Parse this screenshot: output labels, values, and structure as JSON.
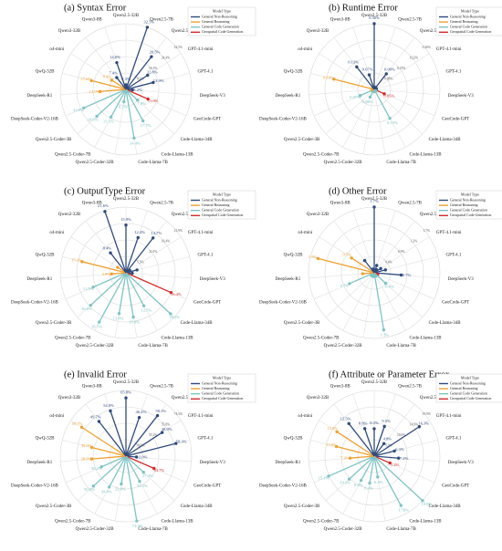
{
  "figure": {
    "legend_title": "Model Type",
    "legend_items": [
      {
        "label": "General Non-Reasoning",
        "color": "#2f4b7c"
      },
      {
        "label": "General Reasoning",
        "color": "#f0a030"
      },
      {
        "label": "General Code Generation",
        "color": "#7fc4c4"
      },
      {
        "label": "Geospatial Code Generation",
        "color": "#d62828"
      }
    ]
  },
  "chart_data": [
    {
      "type": "radar",
      "title": "(a) Syntax Error",
      "categories": [
        "Qwen2.5-32B",
        "Qwen2.5-7B",
        "Qwen2.5-3B",
        "GPT-4.1-mini",
        "GPT-4.1",
        "DeepSeek-V3",
        "GeoCode-GPT",
        "Code-Llama-34B",
        "Code-Llama-13B",
        "Code-Llama-7B",
        "Qwen2.5-Coder-32B",
        "Qwen2.5-Coder-7B",
        "Qwen2.5-Coder-3B",
        "DeepSeek-Coder-V2-16B",
        "DeepSeek-R1",
        "QwQ-32B",
        "o4-mini",
        "Qwen3-32B",
        "Qwen3-8B"
      ],
      "groups": [
        0,
        0,
        0,
        0,
        0,
        0,
        3,
        2,
        2,
        2,
        2,
        2,
        2,
        2,
        1,
        1,
        1,
        0,
        0
      ],
      "values": [
        2.3,
        32.5,
        20.5,
        12.8,
        13.9,
        3.2,
        11.9,
        7.8,
        17.7,
        24.4,
        6.2,
        15.5,
        19.6,
        22.8,
        12.9,
        17.6,
        8.4,
        7.4,
        14.0
      ],
      "labels": [
        "2.3%",
        "32.5%",
        "20.5%",
        "12.8%",
        "13.9%",
        "3.2%",
        "11.9%",
        "7.8%",
        "17.7%",
        "24.4%",
        "6.2%",
        "15.5%",
        "19.6%",
        "22.8%",
        "12.9%",
        "17.6%",
        "8.4%",
        "7.4%",
        "14.0%"
      ],
      "rings": [
        "8.1%",
        "16.3%",
        "24.4%",
        "32.5%"
      ],
      "rmax": 32.5
    },
    {
      "type": "radar",
      "title": "(b) Runtime Error",
      "categories": [
        "Qwen2.5-32B",
        "Qwen2.5-7B",
        "Qwen2.5-3B",
        "GPT-4.1-mini",
        "GPT-4.1",
        "DeepSeek-V3",
        "GeoCode-GPT",
        "Code-Llama-34B",
        "Code-Llama-13B",
        "Code-Llama-7B",
        "Qwen2.5-Coder-32B",
        "Qwen2.5-Coder-7B",
        "Qwen2.5-Coder-3B",
        "DeepSeek-Coder-V2-16B",
        "DeepSeek-R1",
        "QwQ-32B",
        "o4-mini",
        "Qwen3-32B",
        "Qwen3-8B"
      ],
      "groups": [
        0,
        0,
        0,
        0,
        0,
        0,
        3,
        2,
        2,
        2,
        2,
        2,
        2,
        2,
        1,
        1,
        1,
        0,
        0
      ],
      "values": [
        0.3,
        0.01,
        0.09,
        0.01,
        0.01,
        0.01,
        0.05,
        0.01,
        0.15,
        0.01,
        0.01,
        0.04,
        0.01,
        0.07,
        0.01,
        0.19,
        0.01,
        0.13,
        0.07
      ],
      "labels": [
        "0.30%",
        "",
        "0.09%",
        "",
        "",
        "",
        "0.05%",
        "",
        "0.15%",
        "",
        "",
        "0.04%",
        "",
        "0.07%",
        "",
        "0.19%",
        "",
        "0.13%",
        "0.07%"
      ],
      "rings": [
        "0.08%",
        "0.15%",
        "0.23%",
        "0.30%"
      ],
      "rmax": 0.3
    },
    {
      "type": "radar",
      "title": "(c) OutputType Error",
      "categories": [
        "Qwen2.5-32B",
        "Qwen2.5-7B",
        "Qwen2.5-3B",
        "GPT-4.1-mini",
        "GPT-4.1",
        "DeepSeek-V3",
        "GeoCode-GPT",
        "Code-Llama-34B",
        "Code-Llama-13B",
        "Code-Llama-7B",
        "Qwen2.5-Coder-32B",
        "Qwen2.5-Coder-7B",
        "Qwen2.5-Coder-3B",
        "DeepSeek-Coder-V2-16B",
        "DeepSeek-R1",
        "QwQ-32B",
        "o4-mini",
        "Qwen3-32B",
        "Qwen3-8B"
      ],
      "groups": [
        0,
        0,
        0,
        0,
        0,
        0,
        3,
        2,
        2,
        2,
        2,
        2,
        2,
        2,
        1,
        1,
        1,
        0,
        0
      ],
      "values": [
        15.9,
        12.4,
        14.7,
        1.5,
        3.8,
        2.1,
        16.4,
        20.2,
        12.5,
        15.0,
        13.8,
        18.7,
        16.0,
        11.9,
        4.8,
        15.1,
        3.3,
        8.4,
        21.6
      ],
      "labels": [
        "15.9%",
        "12.4%",
        "14.7%",
        "",
        "",
        "",
        "16.4%",
        "20.2%",
        "12.5%",
        "15.0%",
        "13.8%",
        "18.7%",
        "16.0%",
        "11.9%",
        "4.8%",
        "15.1%",
        "",
        "8.4%",
        "21.6%"
      ],
      "extra_labels": [
        "21.9%"
      ],
      "rings": [
        "5.5%",
        "11.0%",
        "16.4%",
        "21.9%"
      ],
      "rmax": 21.9
    },
    {
      "type": "radar",
      "title": "(d) Other Error",
      "categories": [
        "Qwen2.5-32B",
        "Qwen2.5-7B",
        "Qwen2.5-3B",
        "GPT-4.1-mini",
        "GPT-4.1",
        "DeepSeek-V3",
        "GeoCode-GPT",
        "Code-Llama-34B",
        "Code-Llama-13B",
        "Code-Llama-7B",
        "Qwen2.5-Coder-32B",
        "Qwen2.5-Coder-7B",
        "Qwen2.5-Coder-3B",
        "DeepSeek-Coder-V2-16B",
        "DeepSeek-R1",
        "QwQ-32B",
        "o4-mini",
        "Qwen3-32B",
        "Qwen3-8B"
      ],
      "groups": [
        0,
        0,
        0,
        0,
        0,
        0,
        3,
        2,
        2,
        2,
        2,
        2,
        2,
        2,
        1,
        1,
        1,
        0,
        0
      ],
      "values": [
        1.7,
        0.2,
        0.1,
        0.2,
        0.3,
        0.7,
        0.1,
        0.4,
        0.1,
        1.5,
        0.1,
        0.1,
        0.1,
        0.7,
        0.3,
        1.5,
        0.7,
        0.4,
        0.1
      ],
      "labels": [
        "1.7%",
        "",
        "",
        "",
        "",
        "0.7%",
        "",
        "0.4%",
        "",
        "1.5%",
        "",
        "",
        "",
        "0.7%",
        "",
        "1.5%",
        "0.7%",
        "",
        ""
      ],
      "rings": [
        "0.4%",
        "0.9%",
        "1.3%",
        "1.7%"
      ],
      "rmax": 1.7
    },
    {
      "type": "radar",
      "title": "(e) Invalid Error",
      "categories": [
        "Qwen2.5-32B",
        "Qwen2.5-7B",
        "Qwen2.5-3B",
        "GPT-4.1-mini",
        "GPT-4.1",
        "DeepSeek-V3",
        "GeoCode-GPT",
        "Code-Llama-34B",
        "Code-Llama-13B",
        "Code-Llama-7B",
        "Qwen2.5-Coder-32B",
        "Qwen2.5-Coder-7B",
        "Qwen2.5-Coder-3B",
        "DeepSeek-Coder-V2-16B",
        "DeepSeek-R1",
        "QwQ-32B",
        "o4-mini",
        "Qwen3-32B",
        "Qwen3-8B"
      ],
      "groups": [
        0,
        0,
        0,
        0,
        0,
        0,
        3,
        2,
        2,
        2,
        2,
        2,
        2,
        2,
        1,
        1,
        1,
        0,
        0
      ],
      "values": [
        65.8,
        46.2,
        58.1,
        48.9,
        58.3,
        12.0,
        34.7,
        27.0,
        32.5,
        74.3,
        32.0,
        39.8,
        50.0,
        30.2,
        38.9,
        39.9,
        59.7,
        49.7,
        54.0
      ],
      "labels": [
        "65.8%",
        "46.2%",
        "58.1%",
        "48.9%",
        "58.3%",
        "12.0%",
        "34.7%",
        "27.0%",
        "32.5%",
        "74.3%",
        "32.0%",
        "39.8%",
        "50.0%",
        "30.2%",
        "38.9%",
        "39.9%",
        "59.7%",
        "49.7%",
        "54.0%"
      ],
      "rings": [
        "18.6%",
        "37.2%",
        "55.8%",
        "74.3%"
      ],
      "rmax": 74.3
    },
    {
      "type": "radar",
      "title": "(f) Attribute or Parameter Error",
      "categories": [
        "Qwen2.5-32B",
        "Qwen2.5-7B",
        "Qwen2.5-3B",
        "GPT-4.1-mini",
        "GPT-4.1",
        "DeepSeek-V3",
        "GeoCode-GPT",
        "Code-Llama-34B",
        "Code-Llama-13B",
        "Code-Llama-7B",
        "Qwen2.5-Coder-32B",
        "Qwen2.5-Coder-7B",
        "Qwen2.5-Coder-3B",
        "DeepSeek-Coder-V2-16B",
        "DeepSeek-R1",
        "QwQ-32B",
        "o4-mini",
        "Qwen3-32B",
        "Qwen3-8B"
      ],
      "groups": [
        0,
        0,
        0,
        0,
        0,
        0,
        3,
        2,
        2,
        2,
        2,
        2,
        2,
        2,
        1,
        1,
        1,
        0,
        0
      ],
      "values": [
        8.3,
        9.5,
        4.8,
        16.3,
        6.3,
        7.4,
        5.2,
        19.9,
        17.0,
        6.4,
        8.3,
        8.4,
        10.3,
        15.1,
        7.3,
        11.8,
        13.5,
        12.5,
        8.8
      ],
      "labels": [
        "8.3%",
        "9.5%",
        "4.8%",
        "16.3%",
        "6.3%",
        "7.4%",
        "5.2%",
        "19.9%",
        "17.0%",
        "6.4%",
        "8.3%",
        "8.4%",
        "10.3%",
        "15.1%",
        "7.3%",
        "11.8%",
        "13.5%",
        "12.5%",
        "8.8%"
      ],
      "rings": [
        "5.0%",
        "10.0%",
        "14.9%",
        "19.9%"
      ],
      "rmax": 19.9
    }
  ]
}
